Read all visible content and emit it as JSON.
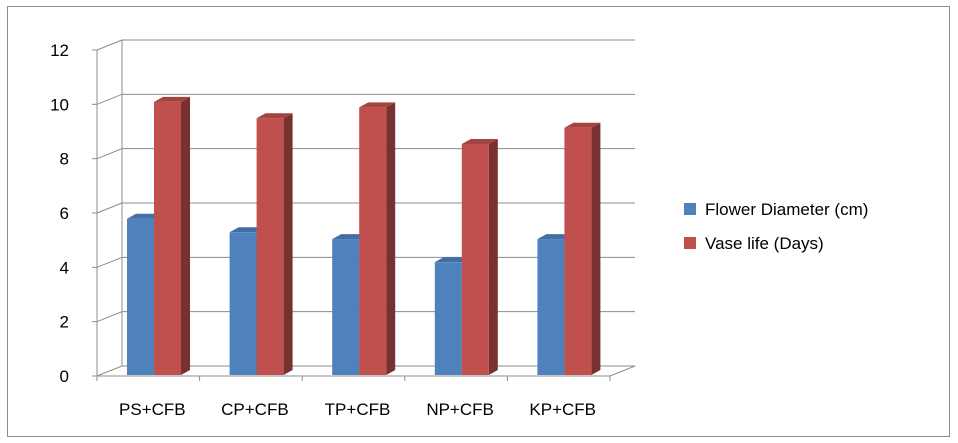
{
  "chart_data": {
    "type": "bar",
    "categories": [
      "PS+CFB",
      "CP+CFB",
      "TP+CFB",
      "NP+CFB",
      "KP+CFB"
    ],
    "series": [
      {
        "name": "Flower Diameter (cm)",
        "values": [
          5.9,
          5.4,
          5.15,
          4.3,
          5.15
        ],
        "color": "#4f81bd"
      },
      {
        "name": "Vase life (Days)",
        "values": [
          10.2,
          9.6,
          10.0,
          8.65,
          9.25
        ],
        "color": "#c0504d"
      }
    ],
    "ylim": [
      0,
      12
    ],
    "yticks": [
      0,
      2,
      4,
      6,
      8,
      10,
      12
    ],
    "title": "",
    "xlabel": "",
    "ylabel": "",
    "grid": true,
    "legend_position": "right",
    "style": "3d-clustered-column"
  }
}
